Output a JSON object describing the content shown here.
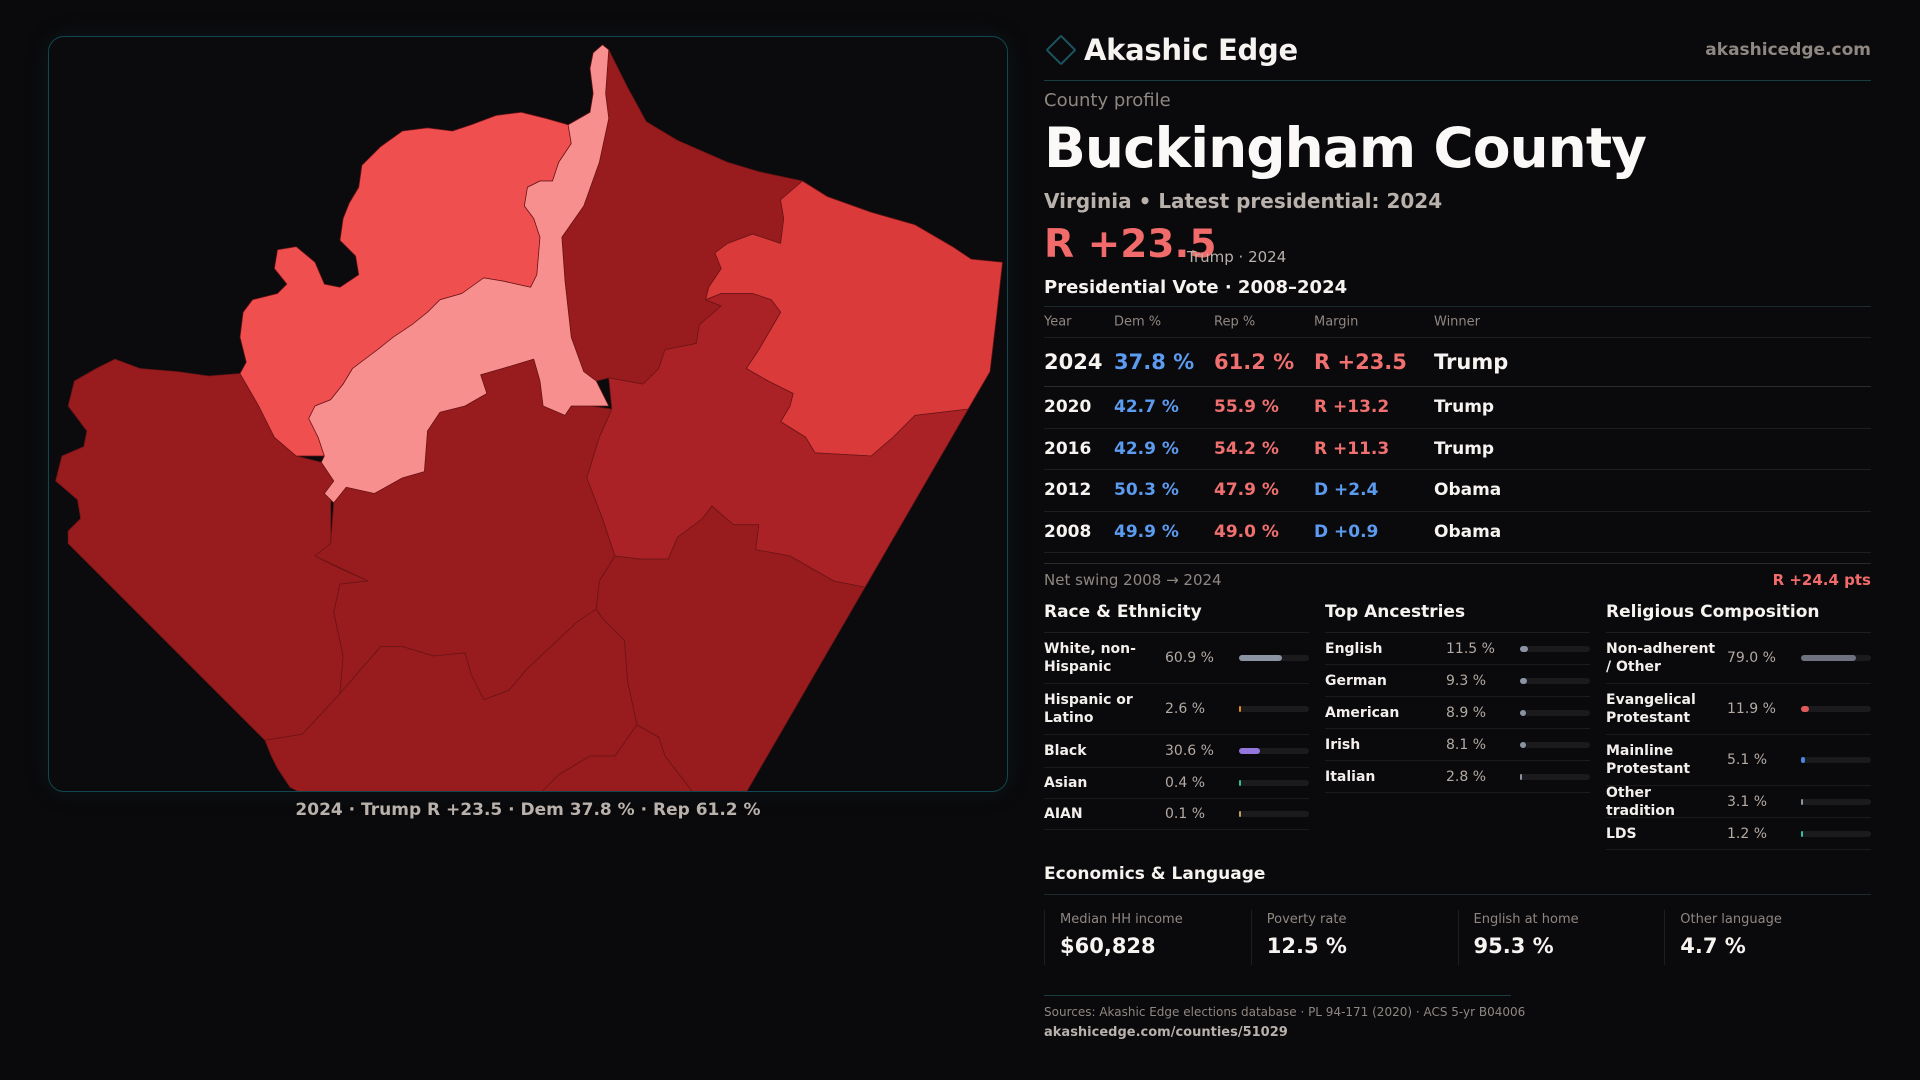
{
  "brand": {
    "name": "Akashic Edge",
    "site": "akashicedge.com",
    "logo_icon": "diamond-outline-icon",
    "accent": "#1a5560"
  },
  "profile": {
    "eyebrow": "County profile",
    "title": "Buckingham County",
    "subtitle": "Virginia • Latest presidential: 2024",
    "headline_margin": "R +23.5",
    "headline_sub": "Trump · 2024"
  },
  "map": {
    "caption": "2024 · Trump R +23.5 · Dem 37.8 % · Rep 61.2 %",
    "colors": {
      "light": "#f78f8f",
      "mid": "#ef4f4f",
      "midstrong": "#db3a3a",
      "strong": "#ab2226",
      "darkest": "#981b1e"
    }
  },
  "votes": {
    "title": "Presidential Vote · 2008–2024",
    "headers": {
      "year": "Year",
      "dem": "Dem %",
      "rep": "Rep %",
      "margin": "Margin",
      "winner": "Winner"
    },
    "rows": [
      {
        "year": "2024",
        "dem": "37.8 %",
        "rep": "61.2 %",
        "margin": "R +23.5",
        "party": "R",
        "winner": "Trump"
      },
      {
        "year": "2020",
        "dem": "42.7 %",
        "rep": "55.9 %",
        "margin": "R +13.2",
        "party": "R",
        "winner": "Trump"
      },
      {
        "year": "2016",
        "dem": "42.9 %",
        "rep": "54.2 %",
        "margin": "R +11.3",
        "party": "R",
        "winner": "Trump"
      },
      {
        "year": "2012",
        "dem": "50.3 %",
        "rep": "47.9 %",
        "margin": "D +2.4",
        "party": "D",
        "winner": "Obama"
      },
      {
        "year": "2008",
        "dem": "49.9 %",
        "rep": "49.0 %",
        "margin": "D +0.9",
        "party": "D",
        "winner": "Obama"
      }
    ],
    "swing_label": "Net swing 2008 → 2024",
    "swing_value": "R +24.4 pts"
  },
  "race": {
    "title": "Race & Ethnicity",
    "items": [
      {
        "label": "White, non-Hispanic",
        "value": "60.9 %",
        "pct": 60.9,
        "color": "#8b94a3"
      },
      {
        "label": "Hispanic or Latino",
        "value": "2.6 %",
        "pct": 2.6,
        "color": "#e08a1c"
      },
      {
        "label": "Black",
        "value": "30.6 %",
        "pct": 30.6,
        "color": "#9477dc"
      },
      {
        "label": "Asian",
        "value": "0.4 %",
        "pct": 0.4,
        "color": "#2fbf8f"
      },
      {
        "label": "AIAN",
        "value": "0.1 %",
        "pct": 0.1,
        "color": "#c0a060"
      }
    ]
  },
  "ancestry": {
    "title": "Top Ancestries",
    "items": [
      {
        "label": "English",
        "value": "11.5 %",
        "pct": 11.5,
        "color": "#8b94a3"
      },
      {
        "label": "German",
        "value": "9.3 %",
        "pct": 9.3,
        "color": "#8b94a3"
      },
      {
        "label": "American",
        "value": "8.9 %",
        "pct": 8.9,
        "color": "#8b94a3"
      },
      {
        "label": "Irish",
        "value": "8.1 %",
        "pct": 8.1,
        "color": "#8b94a3"
      },
      {
        "label": "Italian",
        "value": "2.8 %",
        "pct": 2.8,
        "color": "#8b94a3"
      }
    ]
  },
  "religion": {
    "title": "Religious Composition",
    "items": [
      {
        "label": "Non-adherent / Other",
        "value": "79.0 %",
        "pct": 79.0,
        "color": "#6e7280"
      },
      {
        "label": "Evangelical Protestant",
        "value": "11.9 %",
        "pct": 11.9,
        "color": "#e05a5a"
      },
      {
        "label": "Mainline Protestant",
        "value": "5.1 %",
        "pct": 5.1,
        "color": "#4a86e0"
      },
      {
        "label": "Other tradition",
        "value": "3.1 %",
        "pct": 3.1,
        "color": "#8b94a3"
      },
      {
        "label": "LDS",
        "value": "1.2 %",
        "pct": 1.2,
        "color": "#2fbfa8"
      }
    ]
  },
  "economics": {
    "title": "Economics & Language",
    "cards": [
      {
        "label": "Median HH income",
        "value": "$60,828"
      },
      {
        "label": "Poverty rate",
        "value": "12.5 %"
      },
      {
        "label": "English at home",
        "value": "95.3 %"
      },
      {
        "label": "Other language",
        "value": "4.7 %"
      }
    ]
  },
  "footer": {
    "sources": "Sources: Akashic Edge elections database · PL 94-171 (2020) · ACS 5-yr B04006",
    "url": "akashicedge.com/counties/51029"
  }
}
